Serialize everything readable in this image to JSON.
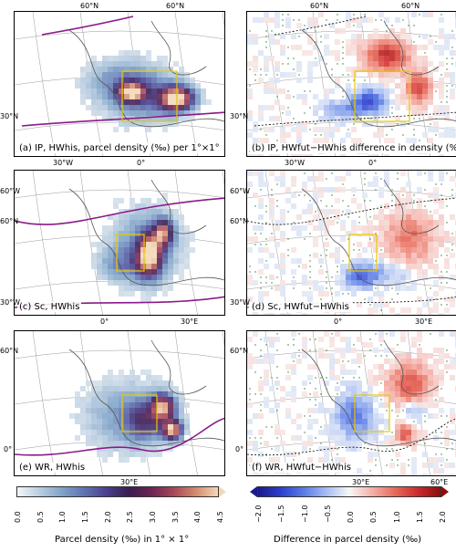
{
  "panels": [
    {
      "id": "a",
      "label": "(a) IP, HWhis, parcel density (‰) per 1°×1°",
      "kind": "density"
    },
    {
      "id": "b",
      "label": "(b) IP, HWfut−HWhis difference in density (‰)",
      "kind": "diff"
    },
    {
      "id": "c",
      "label": "(c) Sc, HWhis",
      "kind": "density"
    },
    {
      "id": "d",
      "label": "(d) Sc, HWfut−HWhis",
      "kind": "diff"
    },
    {
      "id": "e",
      "label": "(e) WR, HWhis",
      "kind": "density"
    },
    {
      "id": "f",
      "label": "(f) WR, HWfut−HWhis",
      "kind": "diff"
    }
  ],
  "axis_ticks": {
    "a": {
      "top": [
        "60°N",
        "60°N"
      ],
      "left": [
        "30°N"
      ],
      "bottom": [
        "30°W",
        "0°"
      ]
    },
    "b": {
      "top": [
        "60°N",
        "60°N"
      ],
      "left": [
        "30°N"
      ],
      "bottom": [
        "30°W",
        "0°"
      ]
    },
    "c": {
      "left": [
        "60°W",
        "60°N",
        "30°W"
      ],
      "bottom": [
        "0°",
        "30°E"
      ]
    },
    "d": {
      "left": [
        "60°W",
        "60°N",
        "30°W"
      ],
      "bottom": [
        "0°",
        "30°E"
      ]
    },
    "e": {
      "left": [
        "60°N",
        "0°"
      ],
      "bottom": [
        "30°E"
      ]
    },
    "f": {
      "left": [
        "60°N",
        "0°"
      ],
      "bottom": [
        "30°E",
        "60°E"
      ]
    }
  },
  "colors": {
    "region_box": "#e8c800",
    "boundary": "#8a1a8a",
    "coast": "#555555",
    "grid": "#999999",
    "dots": "#2e7d32"
  },
  "chart_data": [
    {
      "type": "heatmap",
      "panel": "a",
      "title": "(a) IP, HWhis, parcel density (‰) per 1°×1°",
      "colorbar": {
        "title": "Parcel density (‰) in 1° × 1°",
        "ticks": [
          "0.0",
          "0.5",
          "1.0",
          "1.5",
          "2.0",
          "2.5",
          "3.0",
          "3.5",
          "4.0",
          "4.5"
        ],
        "range": [
          0,
          4.5
        ],
        "extend": "max",
        "colors": [
          "#f3f5f7",
          "#b9cde0",
          "#7fa3c8",
          "#5f73b0",
          "#4a3f8f",
          "#3a1d52",
          "#6a2452",
          "#a8465a",
          "#d38a6a",
          "#f2d8b8"
        ]
      }
    },
    {
      "type": "heatmap",
      "panel": "b",
      "title": "(b) IP, HWfut−HWhis difference in density (‰)"
    },
    {
      "type": "heatmap",
      "panel": "c",
      "title": "(c) Sc, HWhis"
    },
    {
      "type": "heatmap",
      "panel": "d",
      "title": "(d) Sc, HWfut−HWhis"
    },
    {
      "type": "heatmap",
      "panel": "e",
      "title": "(e) WR, HWhis"
    },
    {
      "type": "heatmap",
      "panel": "f",
      "title": "(f) WR, HWfut−HWhis",
      "colorbar": {
        "title": "Difference in parcel density (‰)",
        "ticks": [
          "−2.0",
          "−1.5",
          "−1.0",
          "−0.5",
          "0.0",
          "0.5",
          "1.0",
          "1.5",
          "2.0"
        ],
        "range": [
          -2.0,
          2.0
        ],
        "extend": "both",
        "colors": [
          "#1a1a8c",
          "#2b3fd0",
          "#5a7be6",
          "#a6bdf2",
          "#f7f7f7",
          "#f5b0a8",
          "#e86a5a",
          "#cc2a2a",
          "#8c0d0d"
        ]
      }
    }
  ]
}
